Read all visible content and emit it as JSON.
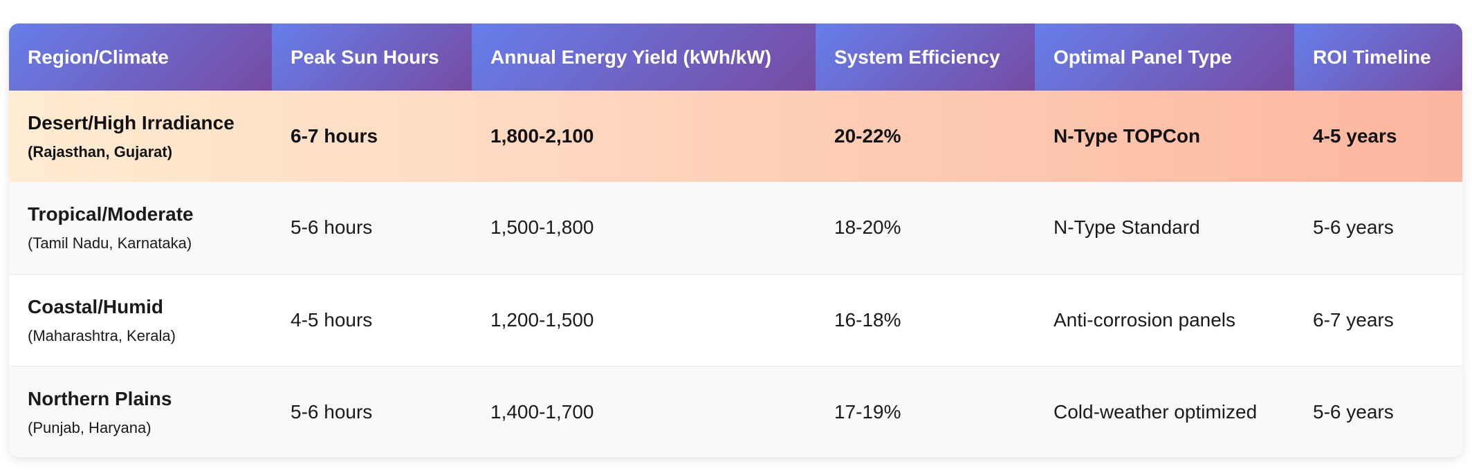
{
  "table": {
    "headers": [
      "Region/Climate",
      "Peak Sun Hours",
      "Annual Energy Yield (kWh/kW)",
      "System Efficiency",
      "Optimal Panel Type",
      "ROI Timeline"
    ],
    "rows": [
      {
        "region": "Desert/High Irradiance",
        "states": "(Rajasthan, Gujarat)",
        "peak_sun_hours": "6-7 hours",
        "annual_yield": "1,800-2,100",
        "efficiency": "20-22%",
        "panel_type": "N-Type TOPCon",
        "roi": "4-5 years"
      },
      {
        "region": "Tropical/Moderate",
        "states": "(Tamil Nadu, Karnataka)",
        "peak_sun_hours": "5-6 hours",
        "annual_yield": "1,500-1,800",
        "efficiency": "18-20%",
        "panel_type": "N-Type Standard",
        "roi": "5-6 years"
      },
      {
        "region": "Coastal/Humid",
        "states": "(Maharashtra, Kerala)",
        "peak_sun_hours": "4-5 hours",
        "annual_yield": "1,200-1,500",
        "efficiency": "16-18%",
        "panel_type": "Anti-corrosion panels",
        "roi": "6-7 years"
      },
      {
        "region": "Northern Plains",
        "states": "(Punjab, Haryana)",
        "peak_sun_hours": "5-6 hours",
        "annual_yield": "1,400-1,700",
        "efficiency": "17-19%",
        "panel_type": "Cold-weather optimized",
        "roi": "5-6 years"
      }
    ]
  },
  "colors": {
    "header_gradient_start": "#667eea",
    "header_gradient_end": "#764ba2",
    "highlight_gradient_start": "#ffecd2",
    "highlight_gradient_end": "#fcb69f",
    "alt_row": "#f8f9fa"
  }
}
